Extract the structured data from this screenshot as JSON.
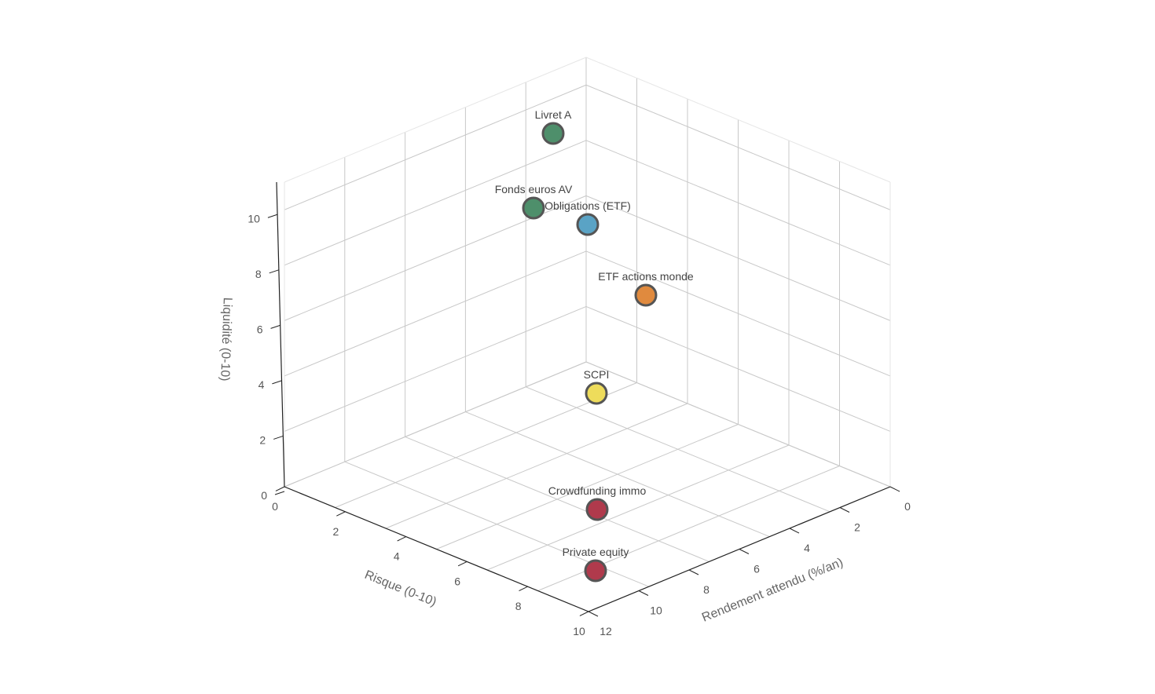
{
  "chart_data": {
    "type": "scatter",
    "dimensions": 3,
    "title": "",
    "xlabel": "Rendement attendu (%/an)",
    "ylabel": "Risque (0-10)",
    "zlabel": "Liquidité (0-10)",
    "xlim": [
      0,
      12
    ],
    "ylim": [
      0,
      10
    ],
    "zlim": [
      0,
      11
    ],
    "xticks": [
      "0",
      "2",
      "4",
      "6",
      "8",
      "10",
      "12"
    ],
    "yticks": [
      "0",
      "2",
      "4",
      "6",
      "8",
      "10"
    ],
    "zticks": [
      "0",
      "2",
      "4",
      "6",
      "8",
      "10"
    ],
    "grid": true,
    "points": [
      {
        "label": "Livret A",
        "x": 3,
        "y": 0.5,
        "z": 10,
        "color": "#4e8f6b"
      },
      {
        "label": "Fonds euros AV",
        "x": 2.5,
        "y": 1.5,
        "z": 8,
        "color": "#4e8f6b"
      },
      {
        "label": "Obligations (ETF)",
        "x": 4,
        "y": 3,
        "z": 8,
        "color": "#5aa3c5"
      },
      {
        "label": "ETF actions monde",
        "x": 7,
        "y": 6,
        "z": 8,
        "color": "#e08a3e"
      },
      {
        "label": "SCPI",
        "x": 5,
        "y": 6,
        "z": 3,
        "color": "#eedc5b"
      },
      {
        "label": "Crowdfunding immo",
        "x": 10,
        "y": 7,
        "z": 1,
        "color": "#b03a4c"
      },
      {
        "label": "Private equity",
        "x": 12,
        "y": 9,
        "z": 1,
        "color": "#b03a4c"
      }
    ]
  }
}
